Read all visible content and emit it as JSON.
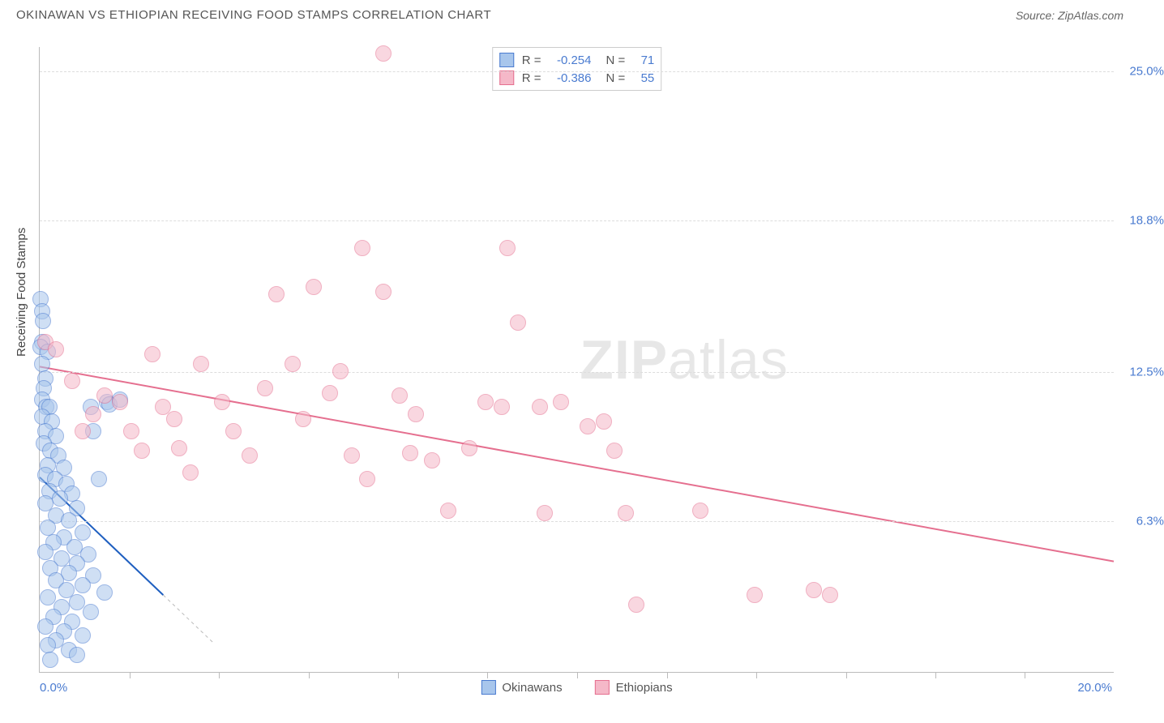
{
  "header": {
    "title": "OKINAWAN VS ETHIOPIAN RECEIVING FOOD STAMPS CORRELATION CHART",
    "source": "Source: ZipAtlas.com"
  },
  "watermark": {
    "zip": "ZIP",
    "atlas": "atlas"
  },
  "chart": {
    "type": "scatter",
    "ylabel": "Receiving Food Stamps",
    "xlim": [
      0,
      20
    ],
    "ylim": [
      0,
      26
    ],
    "x_axis_label_left": "0.0%",
    "x_axis_label_right": "20.0%",
    "y_ticks": [
      {
        "v": 6.3,
        "label": "6.3%"
      },
      {
        "v": 12.5,
        "label": "12.5%"
      },
      {
        "v": 18.8,
        "label": "18.8%"
      },
      {
        "v": 25.0,
        "label": "25.0%"
      }
    ],
    "x_tick_positions": [
      1.67,
      3.33,
      5.0,
      6.67,
      8.33,
      10.0,
      11.67,
      13.33,
      15.0,
      16.67,
      18.33
    ],
    "grid_color": "#dddddd",
    "axis_color": "#bbbbbb",
    "background_color": "#ffffff",
    "point_radius": 10,
    "point_opacity": 0.55,
    "series": [
      {
        "key": "okinawans",
        "label": "Okinawans",
        "fill": "#a8c6ec",
        "stroke": "#4a7bd0",
        "r_value": "-0.254",
        "n_value": "71",
        "trend": {
          "x1": 0,
          "y1": 8.1,
          "x2": 2.3,
          "y2": 3.2,
          "dash_to_x": 3.25,
          "stroke": "#1f5fc0",
          "width": 2
        },
        "points": [
          {
            "x": 0.02,
            "y": 15.5
          },
          {
            "x": 0.05,
            "y": 15.0
          },
          {
            "x": 0.06,
            "y": 14.6
          },
          {
            "x": 0.05,
            "y": 13.7
          },
          {
            "x": 0.02,
            "y": 13.5
          },
          {
            "x": 0.15,
            "y": 13.3
          },
          {
            "x": 0.05,
            "y": 12.8
          },
          {
            "x": 0.1,
            "y": 12.2
          },
          {
            "x": 0.08,
            "y": 11.8
          },
          {
            "x": 0.05,
            "y": 11.3
          },
          {
            "x": 0.12,
            "y": 11.0
          },
          {
            "x": 0.18,
            "y": 11.0
          },
          {
            "x": 0.05,
            "y": 10.6
          },
          {
            "x": 0.22,
            "y": 10.4
          },
          {
            "x": 0.1,
            "y": 10.0
          },
          {
            "x": 0.3,
            "y": 9.8
          },
          {
            "x": 0.08,
            "y": 9.5
          },
          {
            "x": 0.2,
            "y": 9.2
          },
          {
            "x": 0.35,
            "y": 9.0
          },
          {
            "x": 0.15,
            "y": 8.6
          },
          {
            "x": 0.45,
            "y": 8.5
          },
          {
            "x": 0.1,
            "y": 8.2
          },
          {
            "x": 0.28,
            "y": 8.0
          },
          {
            "x": 0.5,
            "y": 7.8
          },
          {
            "x": 0.18,
            "y": 7.5
          },
          {
            "x": 0.6,
            "y": 7.4
          },
          {
            "x": 0.38,
            "y": 7.2
          },
          {
            "x": 0.1,
            "y": 7.0
          },
          {
            "x": 0.7,
            "y": 6.8
          },
          {
            "x": 0.3,
            "y": 6.5
          },
          {
            "x": 0.55,
            "y": 6.3
          },
          {
            "x": 0.15,
            "y": 6.0
          },
          {
            "x": 0.8,
            "y": 5.8
          },
          {
            "x": 0.45,
            "y": 5.6
          },
          {
            "x": 0.25,
            "y": 5.4
          },
          {
            "x": 0.65,
            "y": 5.2
          },
          {
            "x": 0.1,
            "y": 5.0
          },
          {
            "x": 0.9,
            "y": 4.9
          },
          {
            "x": 0.4,
            "y": 4.7
          },
          {
            "x": 0.7,
            "y": 4.5
          },
          {
            "x": 0.2,
            "y": 4.3
          },
          {
            "x": 0.55,
            "y": 4.1
          },
          {
            "x": 1.0,
            "y": 4.0
          },
          {
            "x": 0.3,
            "y": 3.8
          },
          {
            "x": 0.8,
            "y": 3.6
          },
          {
            "x": 0.5,
            "y": 3.4
          },
          {
            "x": 1.2,
            "y": 3.3
          },
          {
            "x": 0.15,
            "y": 3.1
          },
          {
            "x": 0.7,
            "y": 2.9
          },
          {
            "x": 0.4,
            "y": 2.7
          },
          {
            "x": 0.95,
            "y": 2.5
          },
          {
            "x": 0.25,
            "y": 2.3
          },
          {
            "x": 0.6,
            "y": 2.1
          },
          {
            "x": 0.1,
            "y": 1.9
          },
          {
            "x": 0.45,
            "y": 1.7
          },
          {
            "x": 0.8,
            "y": 1.5
          },
          {
            "x": 0.3,
            "y": 1.3
          },
          {
            "x": 0.15,
            "y": 1.1
          },
          {
            "x": 0.55,
            "y": 0.9
          },
          {
            "x": 0.7,
            "y": 0.7
          },
          {
            "x": 0.2,
            "y": 0.5
          },
          {
            "x": 1.25,
            "y": 11.2
          },
          {
            "x": 1.3,
            "y": 11.1
          },
          {
            "x": 1.5,
            "y": 11.3
          },
          {
            "x": 0.95,
            "y": 11.0
          },
          {
            "x": 1.0,
            "y": 10.0
          },
          {
            "x": 1.1,
            "y": 8.0
          }
        ]
      },
      {
        "key": "ethiopians",
        "label": "Ethiopians",
        "fill": "#f5b8c8",
        "stroke": "#e56f8f",
        "r_value": "-0.386",
        "n_value": "55",
        "trend": {
          "x1": 0,
          "y1": 12.7,
          "x2": 20,
          "y2": 4.6,
          "stroke": "#e56f8f",
          "width": 2
        },
        "points": [
          {
            "x": 6.4,
            "y": 25.7
          },
          {
            "x": 0.1,
            "y": 13.7
          },
          {
            "x": 0.3,
            "y": 13.4
          },
          {
            "x": 0.6,
            "y": 12.1
          },
          {
            "x": 1.0,
            "y": 10.7
          },
          {
            "x": 0.8,
            "y": 10.0
          },
          {
            "x": 1.2,
            "y": 11.5
          },
          {
            "x": 1.5,
            "y": 11.2
          },
          {
            "x": 1.7,
            "y": 10.0
          },
          {
            "x": 1.9,
            "y": 9.2
          },
          {
            "x": 2.1,
            "y": 13.2
          },
          {
            "x": 2.3,
            "y": 11.0
          },
          {
            "x": 2.5,
            "y": 10.5
          },
          {
            "x": 2.6,
            "y": 9.3
          },
          {
            "x": 2.8,
            "y": 8.3
          },
          {
            "x": 3.0,
            "y": 12.8
          },
          {
            "x": 3.4,
            "y": 11.2
          },
          {
            "x": 3.6,
            "y": 10.0
          },
          {
            "x": 3.9,
            "y": 9.0
          },
          {
            "x": 4.2,
            "y": 11.8
          },
          {
            "x": 4.4,
            "y": 15.7
          },
          {
            "x": 4.7,
            "y": 12.8
          },
          {
            "x": 4.9,
            "y": 10.5
          },
          {
            "x": 5.1,
            "y": 16.0
          },
          {
            "x": 5.4,
            "y": 11.6
          },
          {
            "x": 5.6,
            "y": 12.5
          },
          {
            "x": 5.8,
            "y": 9.0
          },
          {
            "x": 6.0,
            "y": 17.6
          },
          {
            "x": 6.1,
            "y": 8.0
          },
          {
            "x": 6.4,
            "y": 15.8
          },
          {
            "x": 6.7,
            "y": 11.5
          },
          {
            "x": 6.9,
            "y": 9.1
          },
          {
            "x": 7.0,
            "y": 10.7
          },
          {
            "x": 7.3,
            "y": 8.8
          },
          {
            "x": 7.6,
            "y": 6.7
          },
          {
            "x": 8.0,
            "y": 9.3
          },
          {
            "x": 8.3,
            "y": 11.2
          },
          {
            "x": 8.6,
            "y": 11.0
          },
          {
            "x": 8.9,
            "y": 14.5
          },
          {
            "x": 9.3,
            "y": 11.0
          },
          {
            "x": 9.4,
            "y": 6.6
          },
          {
            "x": 9.7,
            "y": 11.2
          },
          {
            "x": 10.2,
            "y": 10.2
          },
          {
            "x": 10.5,
            "y": 10.4
          },
          {
            "x": 10.7,
            "y": 9.2
          },
          {
            "x": 10.9,
            "y": 6.6
          },
          {
            "x": 11.1,
            "y": 2.8
          },
          {
            "x": 12.3,
            "y": 6.7
          },
          {
            "x": 13.3,
            "y": 3.2
          },
          {
            "x": 14.4,
            "y": 3.4
          },
          {
            "x": 14.7,
            "y": 3.2
          },
          {
            "x": 8.7,
            "y": 17.6
          }
        ]
      }
    ]
  },
  "legend_top": {
    "r_label": "R =",
    "n_label": "N ="
  },
  "colors": {
    "axis_label": "#4a7bd0",
    "text": "#555555"
  }
}
